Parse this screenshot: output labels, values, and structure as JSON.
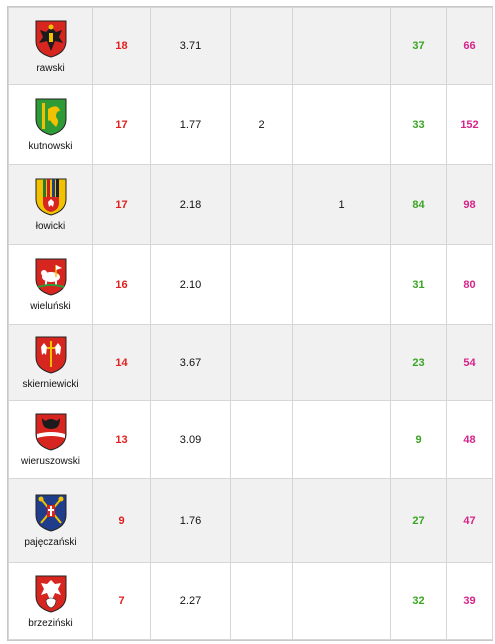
{
  "rows": [
    {
      "name": "rawski",
      "a": "18",
      "b": "3.71",
      "c": "",
      "d": "",
      "e": "37",
      "f": "66",
      "crest": "eagle-black-on-red"
    },
    {
      "name": "kutnowski",
      "a": "17",
      "b": "1.77",
      "c": "2",
      "d": "",
      "e": "33",
      "f": "152",
      "crest": "green-griffin-grain"
    },
    {
      "name": "łowicki",
      "a": "17",
      "b": "2.18",
      "c": "",
      "d": "1",
      "e": "84",
      "f": "98",
      "crest": "yellow-stripes-eagle"
    },
    {
      "name": "wieluński",
      "a": "16",
      "b": "2.10",
      "c": "",
      "d": "",
      "e": "31",
      "f": "80",
      "crest": "red-lamb"
    },
    {
      "name": "skierniewicki",
      "a": "14",
      "b": "3.67",
      "c": "",
      "d": "",
      "e": "23",
      "f": "54",
      "crest": "red-two-eagles"
    },
    {
      "name": "wieruszowski",
      "a": "13",
      "b": "3.09",
      "c": "",
      "d": "",
      "e": "9",
      "f": "48",
      "crest": "red-bull-head"
    },
    {
      "name": "pajęczański",
      "a": "9",
      "b": "1.76",
      "c": "",
      "d": "",
      "e": "27",
      "f": "47",
      "crest": "blue-crossed-keys"
    },
    {
      "name": "brzeziński",
      "a": "7",
      "b": "2.27",
      "c": "",
      "d": "",
      "e": "32",
      "f": "39",
      "crest": "red-eagle-white"
    }
  ],
  "colors": {
    "red": "#e0201e",
    "green": "#3aa524",
    "pink": "#d6258a",
    "alt_row": "#f1f1f1"
  }
}
